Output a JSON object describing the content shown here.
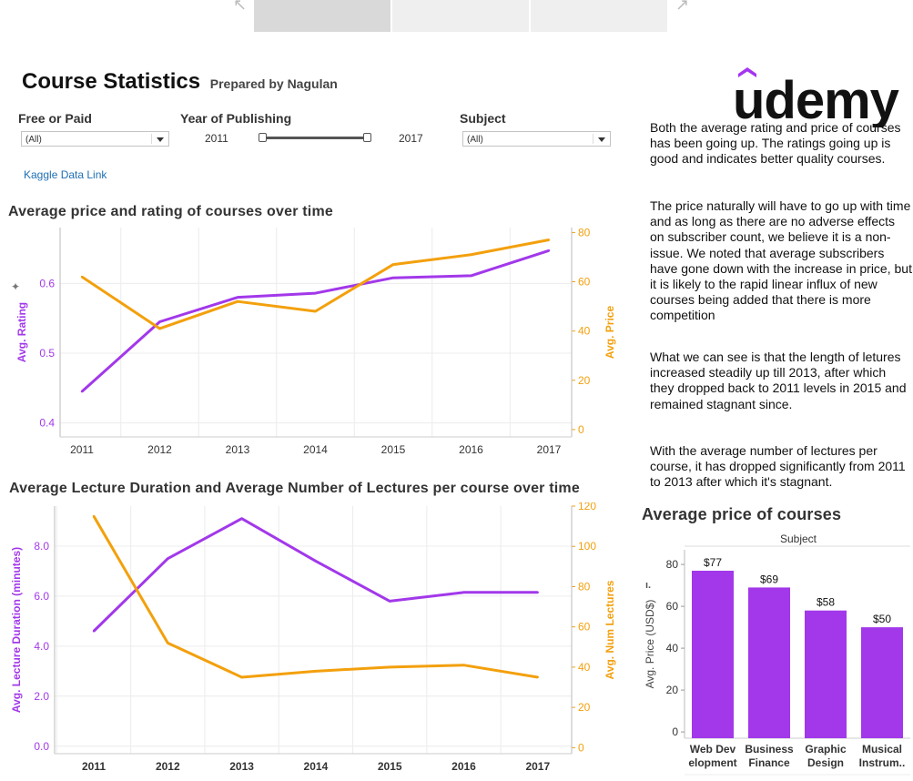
{
  "tabs": [
    {
      "label": ""
    },
    {
      "label": ""
    },
    {
      "label": ""
    }
  ],
  "header": {
    "title": "Course Statistics",
    "subtitle": "Prepared by Nagulan",
    "logo_text": "udemy"
  },
  "filters": {
    "free_or_paid": {
      "label": "Free or Paid",
      "value": "(All)"
    },
    "year": {
      "label": "Year of Publishing",
      "min": "2011",
      "max": "2017"
    },
    "subject": {
      "label": "Subject",
      "value": "(All)"
    }
  },
  "link": {
    "label": "Kaggle Data Link"
  },
  "colors": {
    "purple": "#a238ea",
    "orange": "#f3a00d"
  },
  "narrative": {
    "p1": "Both the average rating and price of courses has been going up. The ratings going up is good and indicates better quality courses.",
    "p2": "The price naturally will have to go up with time and as long as there are no adverse effects on subscriber count, we believe it is a non-issue. We noted that average subscribers have gone down with the increase in price, but it is likely to the rapid linear influx of new courses being added that there is more competition",
    "p3": "What we can see is that the length of letures increased steadily up till 2013, after which they dropped back to 2011 levels in 2015 and remained stagnant since.",
    "p4": "With the average number of lectures per course, it has dropped significantly from 2011 to 2013 after which it's stagnant."
  },
  "chart_data": [
    {
      "type": "line",
      "title": "Average price and rating of courses over time",
      "x": [
        "2011",
        "2012",
        "2013",
        "2014",
        "2015",
        "2016",
        "2017"
      ],
      "ylabel": "Avg. Rating",
      "y2label": "Avg. Price",
      "ylim": [
        0.38,
        0.68
      ],
      "y2lim": [
        -3,
        82
      ],
      "yticks": [
        "0.4",
        "0.5",
        "0.6"
      ],
      "y2ticks": [
        "0",
        "20",
        "40",
        "60",
        "80"
      ],
      "series": [
        {
          "name": "Avg. Rating",
          "axis": "left",
          "color": "#a238ea",
          "values": [
            0.445,
            0.545,
            0.58,
            0.586,
            0.608,
            0.611,
            0.647
          ]
        },
        {
          "name": "Avg. Price",
          "axis": "right",
          "color": "#f3a00d",
          "values": [
            62,
            41,
            52,
            48,
            67,
            71,
            77
          ]
        }
      ],
      "grid": true
    },
    {
      "type": "line",
      "title": "Average Lecture Duration and Average Number of Lectures per course over time",
      "x": [
        "2011",
        "2012",
        "2013",
        "2014",
        "2015",
        "2016",
        "2017"
      ],
      "ylabel": "Avg. Lecture Duration (minutes)",
      "y2label": "Avg. Num Lectures",
      "ylim": [
        -0.3,
        9.6
      ],
      "y2lim": [
        -3,
        120
      ],
      "yticks": [
        "0.0",
        "2.0",
        "4.0",
        "6.0",
        "8.0"
      ],
      "y2ticks": [
        "0",
        "20",
        "40",
        "60",
        "80",
        "100",
        "120"
      ],
      "series": [
        {
          "name": "Avg. Lecture Duration (minutes)",
          "axis": "left",
          "color": "#a238ea",
          "values": [
            4.6,
            7.5,
            9.1,
            7.4,
            5.8,
            6.15,
            6.15
          ]
        },
        {
          "name": "Avg. Num Lectures",
          "axis": "right",
          "color": "#f3a00d",
          "values": [
            115,
            52,
            35,
            38,
            40,
            41,
            35
          ]
        }
      ],
      "grid": true
    },
    {
      "type": "bar",
      "title": "Average price of courses",
      "header": "Subject",
      "categories": [
        [
          "Web Dev",
          "elopment"
        ],
        [
          "Business",
          "Finance"
        ],
        [
          "Graphic",
          "Design"
        ],
        [
          "Musical",
          "Instrum.."
        ]
      ],
      "values": [
        77,
        69,
        58,
        50
      ],
      "labels": [
        "$77",
        "$69",
        "$58",
        "$50"
      ],
      "ylabel": "Avg. Price (USD$)",
      "ylim": [
        -3,
        87
      ],
      "yticks": [
        "0",
        "20",
        "40",
        "60",
        "80"
      ],
      "color": "#a238ea"
    }
  ]
}
